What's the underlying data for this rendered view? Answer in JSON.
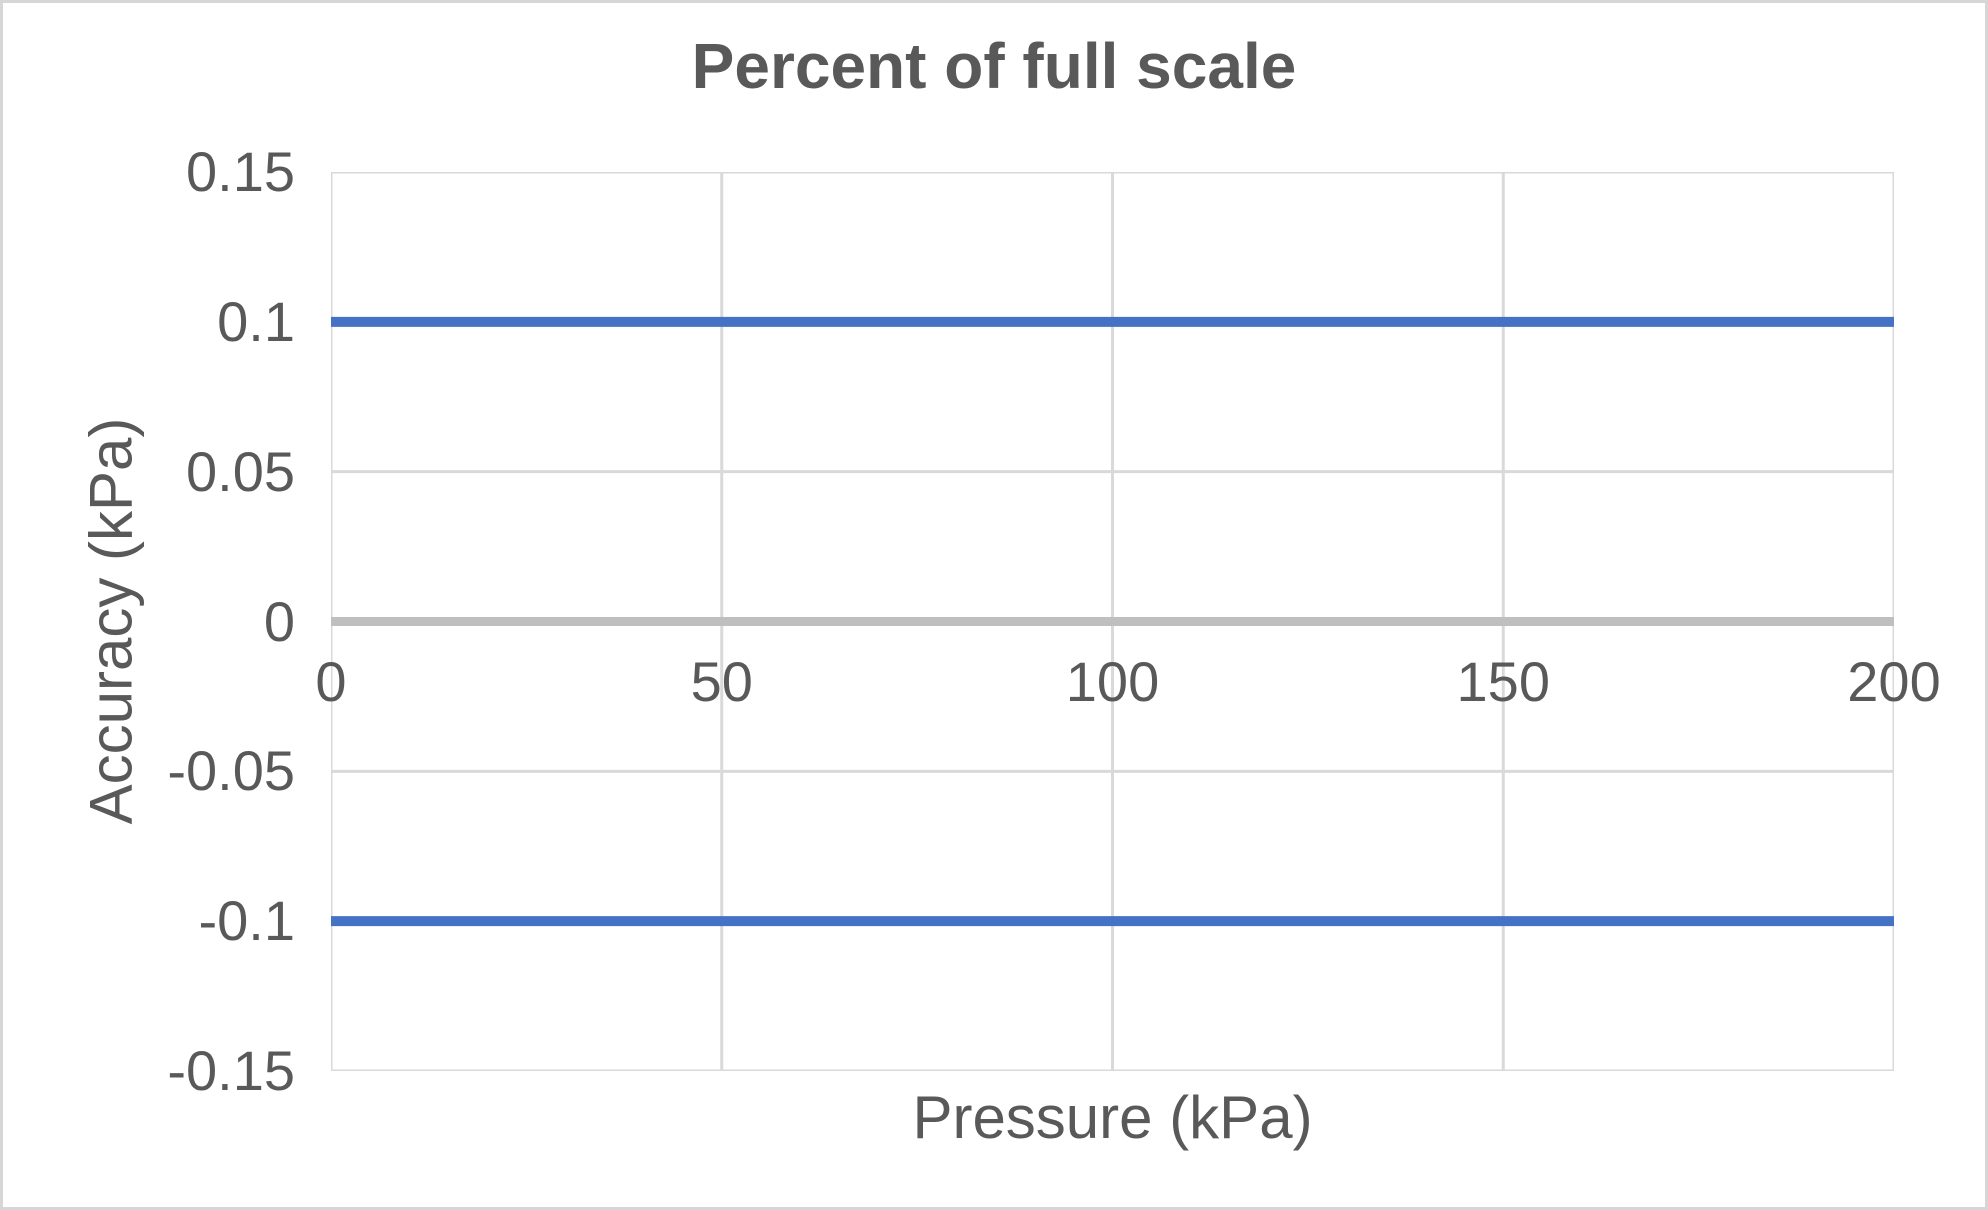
{
  "chart_data": {
    "type": "line",
    "title": "Percent of full scale",
    "xlabel": "Pressure (kPa)",
    "ylabel": "Accuracy (kPa)",
    "xlim": [
      0,
      200
    ],
    "ylim": [
      -0.15,
      0.15
    ],
    "xticks": [
      "0",
      "50",
      "100",
      "150",
      "200"
    ],
    "yticks": [
      "0.15",
      "0.1",
      "0.05",
      "0",
      "-0.05",
      "-0.1",
      "-0.15"
    ],
    "grid": true,
    "legend": false,
    "series": [
      {
        "name": "upper_limit",
        "x": [
          0,
          200
        ],
        "values": [
          0.1,
          0.1
        ],
        "color": "#4472C4"
      },
      {
        "name": "lower_limit",
        "x": [
          0,
          200
        ],
        "values": [
          -0.1,
          -0.1
        ],
        "color": "#4472C4"
      }
    ],
    "colors": {
      "series": "#4472C4",
      "gridline": "#D9D9D9",
      "zero_line": "#BFBFBF",
      "text": "#595959"
    }
  }
}
